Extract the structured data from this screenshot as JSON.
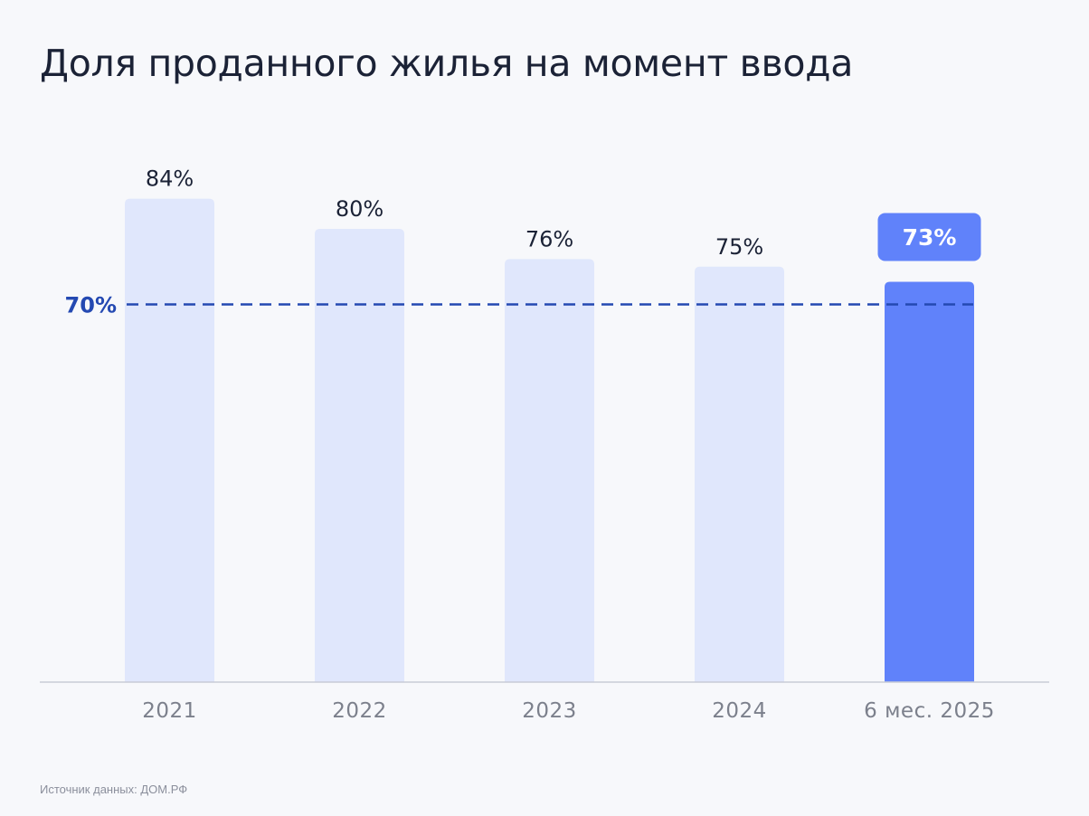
{
  "title": "Доля проданного жилья на момент ввода",
  "source": "Источник данных: ДОМ.РФ",
  "colors": {
    "bar": "#e0e7fc",
    "bar_highlight": "#6082fa",
    "reference_line": "#2449b2",
    "value_label": "#1b2236",
    "axis_label": "#7c808c",
    "axis_line": "#c8ccd6",
    "highlight_label_text": "#ffffff"
  },
  "chart_data": {
    "type": "bar",
    "title": "Доля проданного жилья на момент ввода",
    "categories": [
      "2021",
      "2022",
      "2023",
      "2024",
      "6 мес. 2025"
    ],
    "values": [
      84,
      80,
      76,
      75,
      73
    ],
    "value_labels": [
      "84%",
      "80%",
      "76%",
      "75%",
      "73%"
    ],
    "highlighted_index": 4,
    "reference_line": {
      "value": 70,
      "label": "70%",
      "style": "dashed"
    },
    "xlabel": "",
    "ylabel": "",
    "unit": "%",
    "grid": false,
    "legend": "none"
  }
}
